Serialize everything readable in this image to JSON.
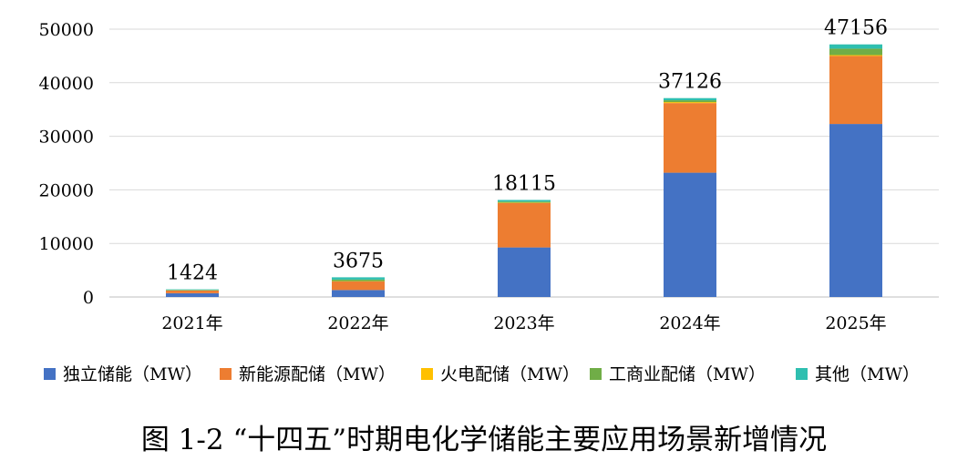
{
  "chart_data": {
    "type": "bar",
    "stacked": true,
    "categories": [
      "2021年",
      "2022年",
      "2023年",
      "2024年",
      "2025年"
    ],
    "totals": [
      "1424",
      "3675",
      "18115",
      "37126",
      "47156"
    ],
    "series": [
      {
        "name": "独立储能（MW）",
        "color": "#4472C4",
        "values": [
          700,
          1300,
          9250,
          23200,
          32300
        ]
      },
      {
        "name": "新能源配储（MW）",
        "color": "#ED7D31",
        "values": [
          500,
          1600,
          8300,
          13000,
          12700
        ]
      },
      {
        "name": "火电配储（MW）",
        "color": "#FFC000",
        "values": [
          20,
          50,
          55,
          176,
          156
        ]
      },
      {
        "name": "工商业配储（MW）",
        "color": "#70AD47",
        "values": [
          100,
          300,
          200,
          350,
          1200
        ]
      },
      {
        "name": "其他（MW）",
        "color": "#2FBFB0",
        "values": [
          104,
          425,
          310,
          400,
          800
        ]
      }
    ],
    "ylim": [
      0,
      50000
    ],
    "yticks": [
      "0",
      "10000",
      "20000",
      "30000",
      "40000",
      "50000"
    ],
    "grid": true,
    "legend_position": "bottom",
    "caption": "图 1-2 “十四五”时期电化学储能主要应用场景新增情况"
  }
}
